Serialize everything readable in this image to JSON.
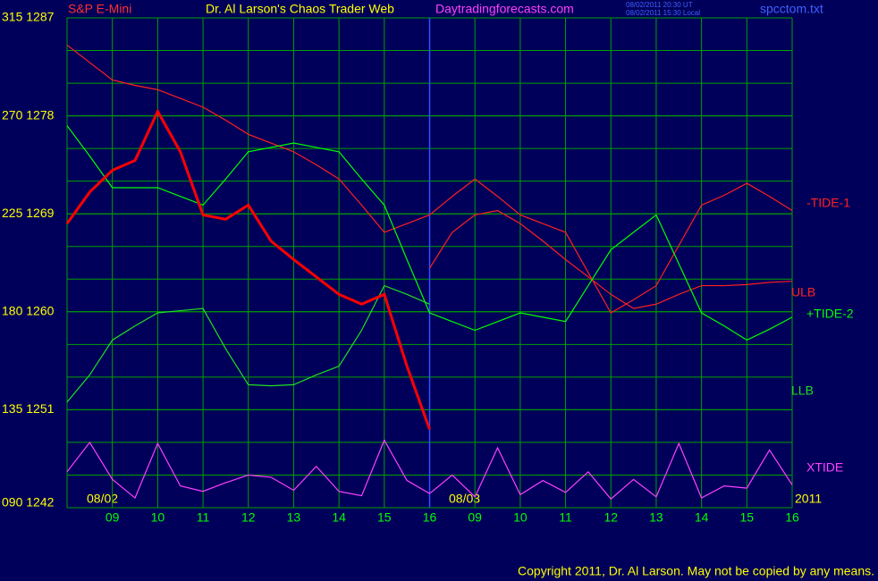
{
  "chart_data": {
    "type": "line",
    "title": "Dr. Al Larson's Chaos Trader Web",
    "subtitle": "Daytradingforecasts.com",
    "instrument": "S&P E-Mini",
    "file_name": "spcctom.txt",
    "timestamps": [
      "08/02/2011 20:30 UT",
      "08/02/2011 15:30 Local"
    ],
    "date_labels": [
      "08/02",
      "08/03",
      "2011"
    ],
    "copyright": "Copyright 2011, Dr. Al Larson. May not be copied by any means.",
    "x": [
      0,
      0.5,
      1,
      1.5,
      2,
      2.5,
      3,
      3.5,
      4,
      4.5,
      5,
      5.5,
      6,
      6.5,
      7,
      7.5,
      8,
      8.5,
      9,
      9.5,
      10,
      10.5,
      11,
      11.5,
      12,
      12.5,
      13,
      13.5,
      14,
      14.5,
      15,
      15.5,
      16
    ],
    "xlim": [
      0,
      16
    ],
    "xticks": [
      {
        "value": 1,
        "label": "09"
      },
      {
        "value": 2,
        "label": "10"
      },
      {
        "value": 3,
        "label": "11"
      },
      {
        "value": 4,
        "label": "12"
      },
      {
        "value": 5,
        "label": "13"
      },
      {
        "value": 6,
        "label": "14"
      },
      {
        "value": 7,
        "label": "15"
      },
      {
        "value": 8,
        "label": "16"
      },
      {
        "value": 9,
        "label": "09"
      },
      {
        "value": 10,
        "label": "10"
      },
      {
        "value": 11,
        "label": "11"
      },
      {
        "value": 12,
        "label": "12"
      },
      {
        "value": 13,
        "label": "13"
      },
      {
        "value": 14,
        "label": "14"
      },
      {
        "value": 15,
        "label": "15"
      },
      {
        "value": 16,
        "label": "16"
      }
    ],
    "ylim": [
      1242,
      1287
    ],
    "yticks": [
      {
        "value": 1287,
        "label": "315 1287"
      },
      {
        "value": 1278,
        "label": "270 1278"
      },
      {
        "value": 1269,
        "label": "225 1269"
      },
      {
        "value": 1260,
        "label": "180 1260"
      },
      {
        "value": 1251,
        "label": "135 1251"
      },
      {
        "value": 1242,
        "label": "090 1242"
      }
    ],
    "grid": true,
    "price": {
      "color": "#ff0000",
      "values": [
        1268.1,
        1271.0,
        1273.0,
        1273.9,
        1278.4,
        1274.7,
        1268.9,
        1268.5,
        1269.8,
        1266.5,
        1264.8,
        1263.2,
        1261.6,
        1260.7,
        1261.6,
        1255.0,
        1249.2,
        null,
        null,
        null,
        null,
        null,
        null,
        null,
        null,
        null,
        null,
        null,
        null,
        null,
        null,
        null,
        null
      ]
    },
    "series": [
      {
        "name": "-TIDE-1",
        "color": "#ff2020",
        "values": [
          1284.5,
          1282.9,
          1281.3,
          1280.8,
          1280.4,
          1279.6,
          1278.8,
          1277.6,
          1276.3,
          1275.5,
          1274.7,
          1273.5,
          1272.2,
          1269.8,
          1267.3,
          1268.1,
          1268.9,
          1270.6,
          1272.2,
          1270.6,
          1268.9,
          1268.1,
          1267.3,
          1263.6,
          1259.9,
          1261.1,
          1262.4,
          1266.1,
          1269.8,
          1270.7,
          1271.8,
          1270.6,
          1269.3
        ]
      },
      {
        "name": "ULB",
        "color": "#ff2020",
        "values": [
          null,
          null,
          null,
          null,
          null,
          null,
          null,
          null,
          null,
          null,
          null,
          null,
          null,
          null,
          null,
          null,
          1264.0,
          1267.3,
          1268.9,
          1269.3,
          1268.1,
          1266.5,
          1264.8,
          1263.2,
          1261.6,
          1260.3,
          1260.7,
          1261.6,
          1262.4,
          1262.4,
          1262.5,
          1262.7,
          1262.8
        ]
      },
      {
        "name": "+TIDE-2",
        "color": "#00ff00",
        "values": [
          1277.1,
          1274.3,
          1271.4,
          1271.4,
          1271.4,
          1270.6,
          1269.8,
          1272.2,
          1274.7,
          1275.1,
          1275.5,
          1275.1,
          1274.7,
          1272.2,
          1269.8,
          1264.8,
          1259.9,
          1259.1,
          1258.3,
          1259.1,
          1259.9,
          1259.5,
          1259.1,
          1262.4,
          1265.7,
          1267.3,
          1268.9,
          1264.4,
          1259.9,
          1258.7,
          1257.4,
          1258.4,
          1259.5
        ]
      },
      {
        "name": "LLB",
        "color": "#20e020",
        "values": [
          1251.7,
          1254.2,
          1257.4,
          1258.7,
          1259.9,
          1260.1,
          1260.3,
          1256.6,
          1253.3,
          1253.2,
          1253.3,
          1254.2,
          1255.0,
          1258.3,
          1262.4,
          1261.6,
          1260.7,
          null,
          null,
          null,
          null,
          null,
          null,
          null,
          null,
          null,
          null,
          null,
          null,
          null,
          null,
          null,
          null
        ]
      },
      {
        "name": "XTIDE",
        "color": "#ff40ff",
        "values": [
          1245.3,
          1248.0,
          1244.6,
          1242.9,
          1247.9,
          1244.0,
          1243.5,
          1244.3,
          1245.0,
          1244.8,
          1243.6,
          1245.8,
          1243.5,
          1243.1,
          1248.2,
          1244.5,
          1243.3,
          1245.0,
          1243.0,
          1247.5,
          1243.2,
          1244.5,
          1243.4,
          1245.3,
          1242.8,
          1244.6,
          1243.0,
          1247.9,
          1242.9,
          1244.0,
          1243.8,
          1247.3,
          1244.1
        ]
      }
    ]
  }
}
